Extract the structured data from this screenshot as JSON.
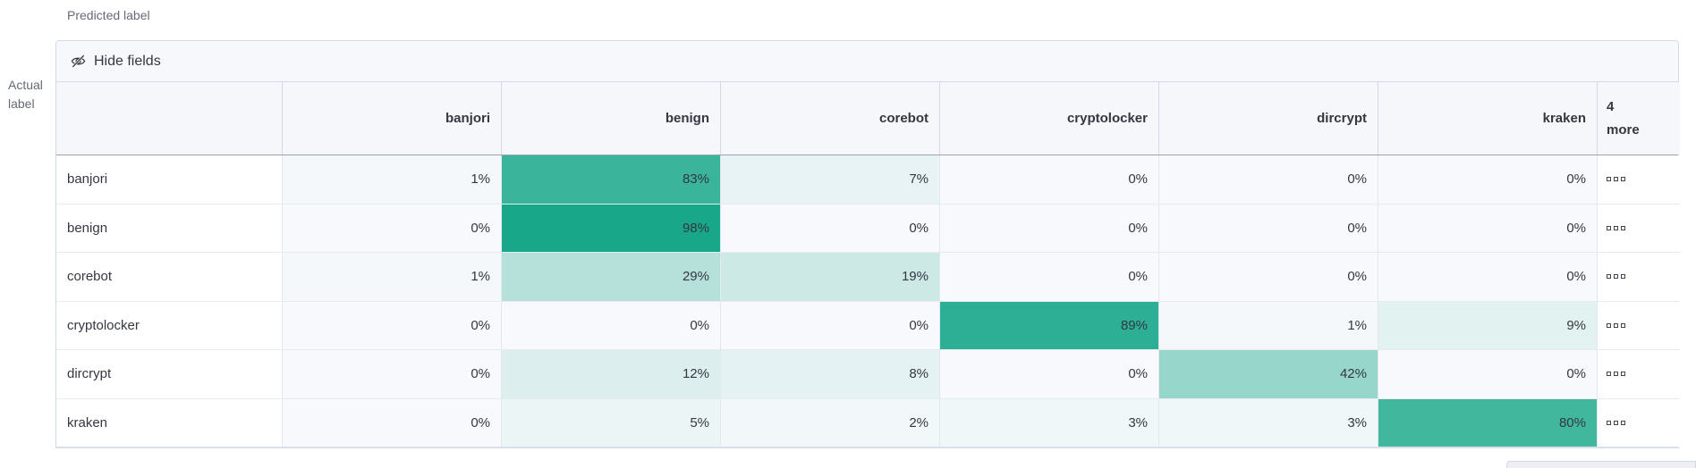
{
  "axes": {
    "predicted": "Predicted label",
    "actual": "Actual label"
  },
  "controls": {
    "hide_fields_label": "Hide fields",
    "hide_fields_icon": "eye-closed-icon"
  },
  "matrix": {
    "type": "heatmap",
    "columns": [
      "banjori",
      "benign",
      "corebot",
      "cryptolocker",
      "dircrypt",
      "kraken"
    ],
    "more_column_label": "4 more",
    "value_suffix": "%",
    "more_cell_icon": "boxes-horizontal-icon",
    "rows": [
      {
        "label": "banjori",
        "values": [
          1,
          83,
          7,
          0,
          0,
          0
        ]
      },
      {
        "label": "benign",
        "values": [
          0,
          98,
          0,
          0,
          0,
          0
        ]
      },
      {
        "label": "corebot",
        "values": [
          1,
          29,
          19,
          0,
          0,
          0
        ]
      },
      {
        "label": "cryptolocker",
        "values": [
          0,
          0,
          0,
          89,
          1,
          9
        ]
      },
      {
        "label": "dircrypt",
        "values": [
          0,
          12,
          8,
          0,
          42,
          0
        ]
      },
      {
        "label": "kraken",
        "values": [
          0,
          5,
          2,
          3,
          3,
          80
        ]
      }
    ]
  },
  "colors": {
    "heat_base": "#13a687",
    "heat_zero": "#f7f9fc",
    "header_bg": "#f5f7fa",
    "text": "#343741"
  }
}
